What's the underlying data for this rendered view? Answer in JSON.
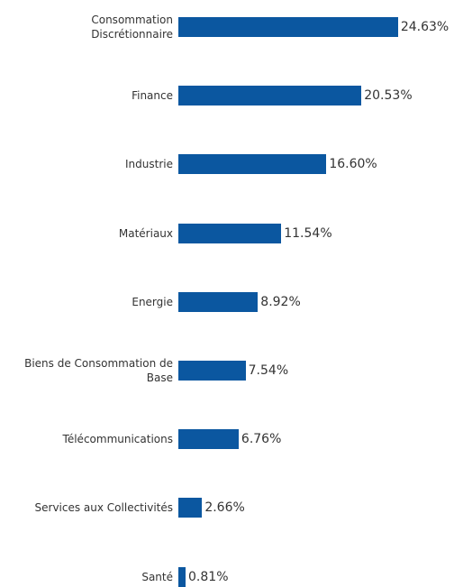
{
  "chart_data": {
    "type": "bar",
    "orientation": "horizontal",
    "color": "#0b57a0",
    "categories": [
      "Consommation Discrétionnaire",
      "Finance",
      "Industrie",
      "Matériaux",
      "Energie",
      "Biens de Consommation de Base",
      "Télécommunications",
      "Services aux Collectivités",
      "Santé"
    ],
    "values": [
      24.63,
      20.53,
      16.6,
      11.54,
      8.92,
      7.54,
      6.76,
      2.66,
      0.81
    ],
    "value_labels": [
      "24.63%",
      "20.53%",
      "16.60%",
      "11.54%",
      "8.92%",
      "7.54%",
      "6.76%",
      "2.66%",
      "0.81%"
    ]
  }
}
